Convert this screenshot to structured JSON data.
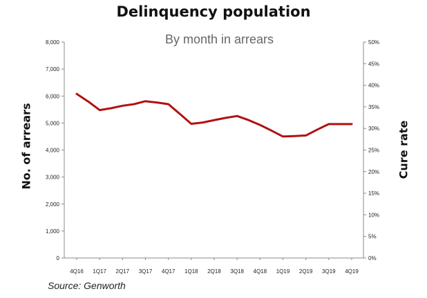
{
  "chart_data": {
    "type": "line",
    "title": "Delinquency population",
    "subtitle": "By month in arrears",
    "ylabel": "No. of arrears",
    "ylabel_right": "Cure rate",
    "source": "Source: Genworth",
    "categories": [
      "4Q16",
      "1Q17",
      "2Q17",
      "3Q17",
      "4Q17",
      "1Q18",
      "2Q18",
      "3Q18",
      "4Q18",
      "1Q19",
      "2Q19",
      "3Q19",
      "4Q19"
    ],
    "ylim": [
      0,
      8000
    ],
    "y_ticks": [
      "0",
      "1,000",
      "2,000",
      "3,000",
      "4,000",
      "5,000",
      "6,000",
      "7,000",
      "8,000"
    ],
    "y2lim": [
      0,
      50
    ],
    "y2_ticks": [
      "0%",
      "5%",
      "10%",
      "15%",
      "20%",
      "25%",
      "30%",
      "35%",
      "40%",
      "45%",
      "50%"
    ],
    "series": [
      {
        "color": "#b01010",
        "x": [
          0,
          0.5,
          1,
          1.5,
          2,
          2.5,
          3,
          3.5,
          4,
          4.5,
          5,
          5.5,
          6,
          6.5,
          7,
          7.5,
          8,
          8.5,
          9,
          9.5,
          10,
          10.5,
          11,
          11.5,
          12
        ],
        "values": [
          6080,
          5800,
          5480,
          5550,
          5640,
          5700,
          5810,
          5760,
          5700,
          5340,
          4970,
          5020,
          5110,
          5190,
          5260,
          5110,
          4930,
          4720,
          4500,
          4520,
          4540,
          4760,
          4960,
          4960,
          4960
        ]
      }
    ],
    "grid": false,
    "legend": "none"
  }
}
